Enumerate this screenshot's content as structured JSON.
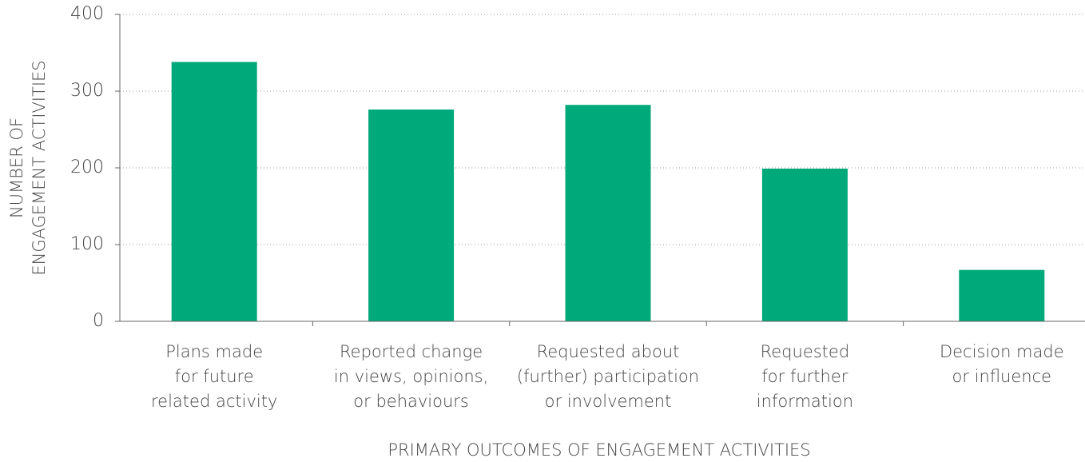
{
  "chart_data": {
    "type": "bar",
    "xlabel": "PRIMARY OUTCOMES OF ENGAGEMENT ACTIVITIES",
    "ylabel": [
      "NUMBER OF",
      "ENGAGEMENT ACTIVITIES"
    ],
    "categories": [
      [
        "Plans made",
        "for future",
        "related activity"
      ],
      [
        "Reported change",
        "in views, opinions,",
        "or behaviours"
      ],
      [
        "Requested about",
        "(further) participation",
        "or involvement"
      ],
      [
        "Requested",
        "for further",
        "information"
      ],
      [
        "Decision made",
        "or influence"
      ]
    ],
    "values": [
      338,
      276,
      282,
      199,
      67
    ],
    "color": "#00a97a",
    "ylim": [
      0,
      400
    ],
    "yticks": [
      0,
      100,
      200,
      300,
      400
    ],
    "grid": true
  }
}
